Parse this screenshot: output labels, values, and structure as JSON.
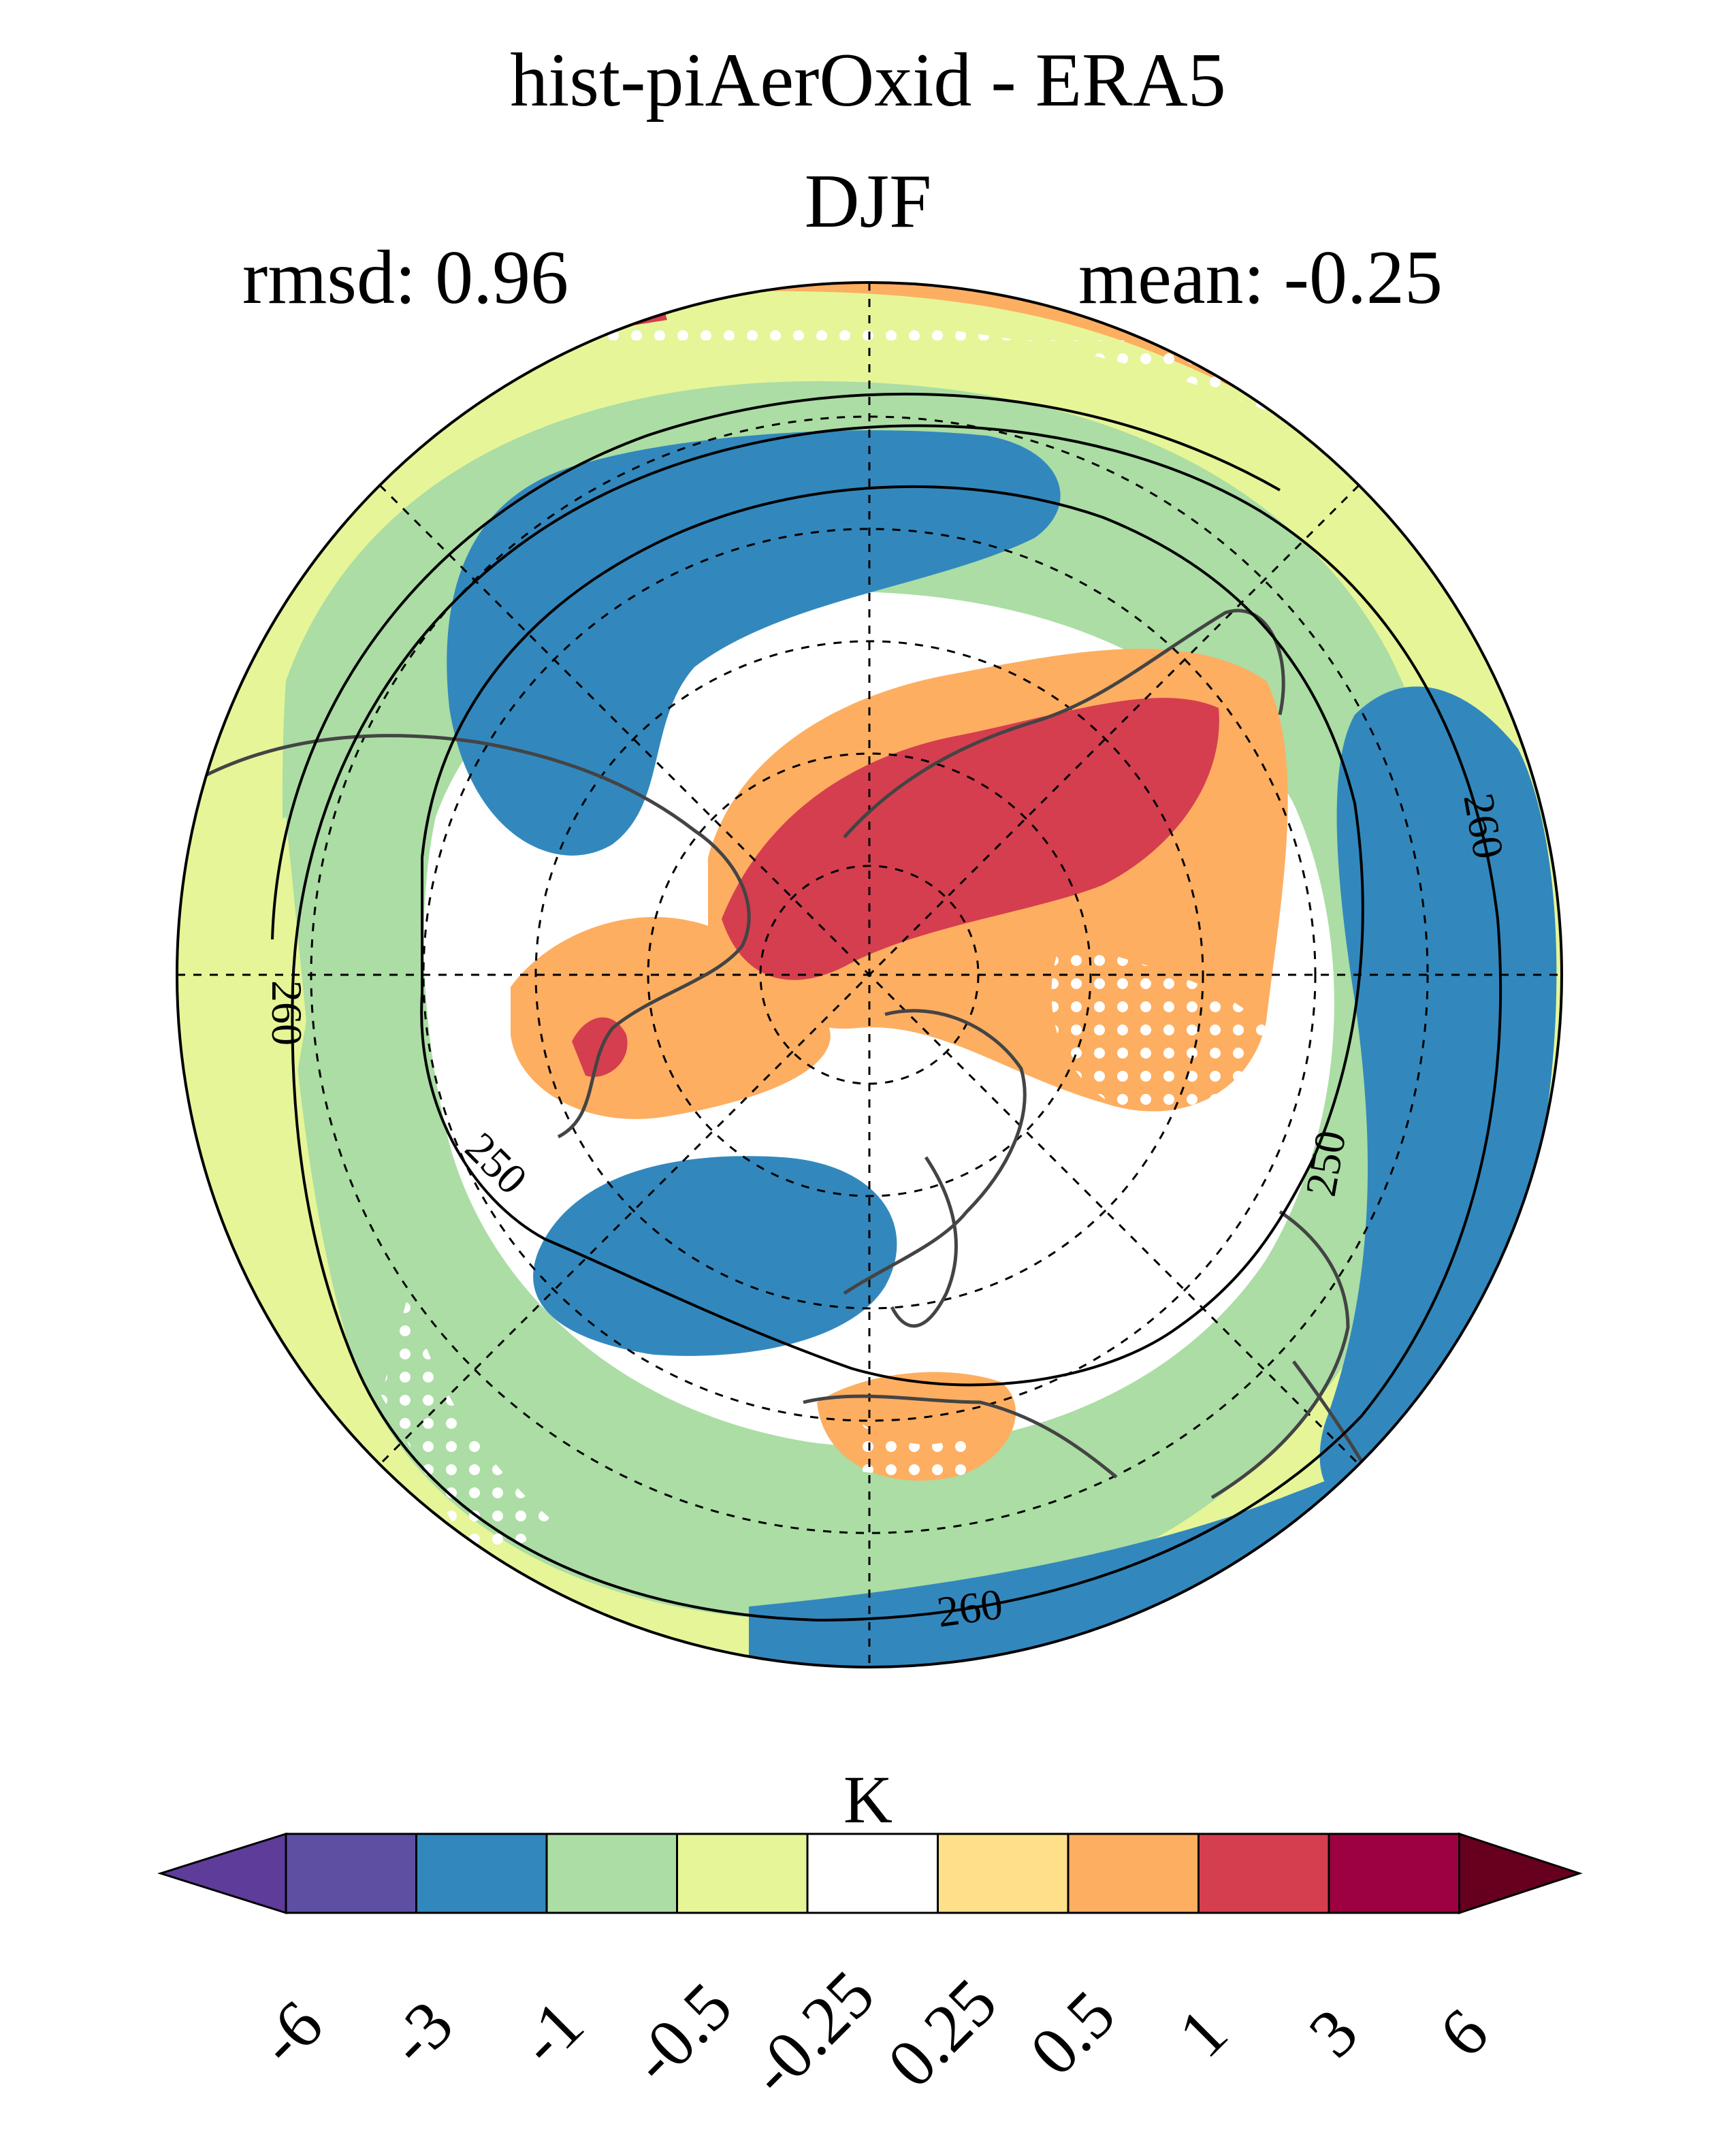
{
  "title": "hist-piAerOxid - ERA5",
  "season": "DJF",
  "rmsd": "rmsd: 0.96",
  "mean": "mean: -0.25",
  "contour_labels": [
    "250",
    "260"
  ],
  "colorbar": {
    "unit": "K",
    "ticks": [
      "-6",
      "-3",
      "-1",
      "-0.5",
      "-0.25",
      "0.25",
      "0.5",
      "1",
      "3",
      "6"
    ],
    "colors": [
      "#5e3c99",
      "#5e4fa2",
      "#3288bd",
      "#abdda4",
      "#e6f598",
      "#ffffff",
      "#fee08b",
      "#fdae61",
      "#d53e4f",
      "#9e0142",
      "#67001f"
    ]
  },
  "map_colors": {
    "strong_neg": "#3288bd",
    "mod_neg": "#abdda4",
    "weak_neg": "#e6f598",
    "neutral": "#ffffff",
    "weak_pos": "#fee08b",
    "mod_pos": "#fdae61",
    "strong_pos": "#d53e4f"
  }
}
